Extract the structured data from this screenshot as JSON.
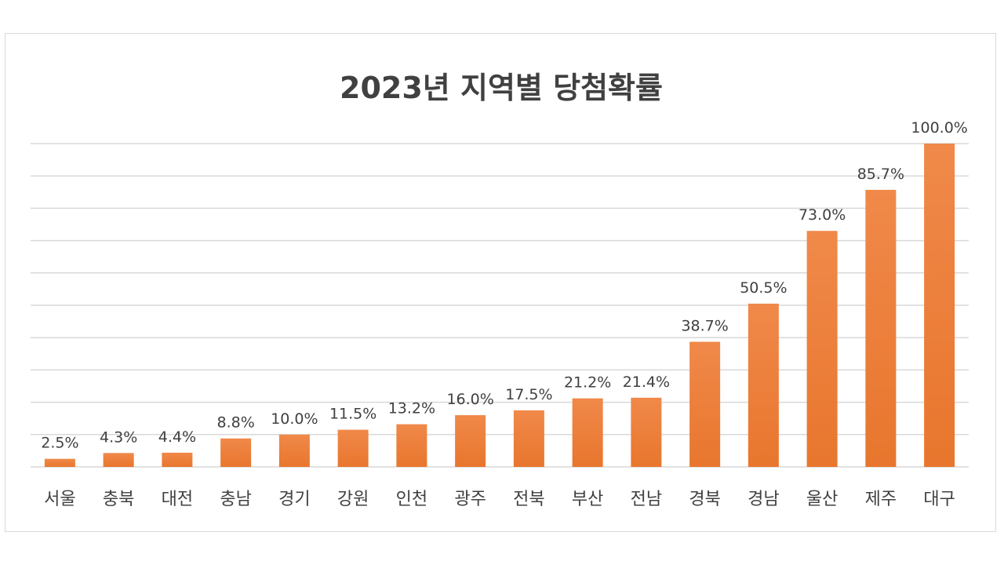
{
  "chart_data": {
    "type": "bar",
    "title": "2023년 지역별 당첨확률",
    "categories": [
      "서울",
      "충북",
      "대전",
      "충남",
      "경기",
      "강원",
      "인천",
      "광주",
      "전북",
      "부산",
      "전남",
      "경북",
      "경남",
      "울산",
      "제주",
      "대구"
    ],
    "values": [
      2.5,
      4.3,
      4.4,
      8.8,
      10.0,
      11.5,
      13.2,
      16.0,
      17.5,
      21.2,
      21.4,
      38.7,
      50.5,
      73.0,
      85.7,
      100.0
    ],
    "data_labels": [
      "2.5%",
      "4.3%",
      "4.4%",
      "8.8%",
      "10.0%",
      "11.5%",
      "13.2%",
      "16.0%",
      "17.5%",
      "21.2%",
      "21.4%",
      "38.7%",
      "50.5%",
      "73.0%",
      "85.7%",
      "100.0%"
    ],
    "unit": "%",
    "ylim": [
      0,
      100
    ],
    "grid": true,
    "legend": "none",
    "colors": {
      "bar": "#ed7d31",
      "bar_light": "#f4a066",
      "grid": "#d9d9d9",
      "text": "#404040"
    }
  }
}
